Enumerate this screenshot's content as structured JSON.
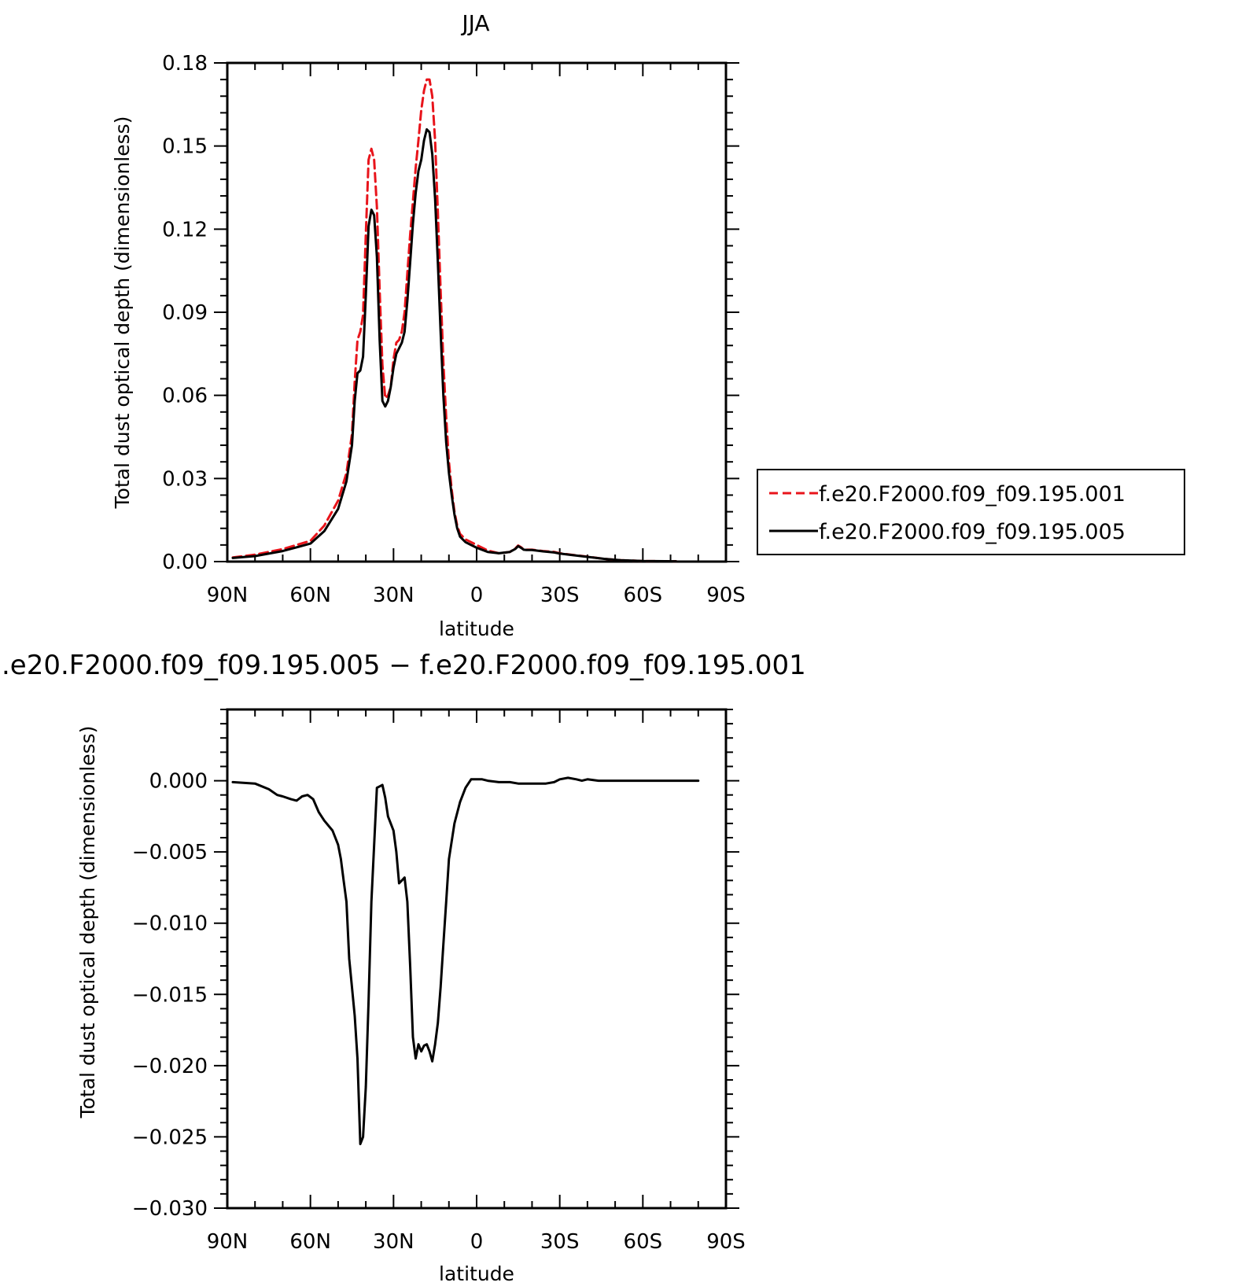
{
  "chart_data": [
    {
      "type": "line",
      "title": "JJA",
      "xlabel": "latitude",
      "ylabel": "Total dust optical depth (dimensionless)",
      "x_tick_labels": [
        "90N",
        "60N",
        "30N",
        "0",
        "30S",
        "60S",
        "90S"
      ],
      "y_tick_labels": [
        "0.00",
        "0.03",
        "0.06",
        "0.09",
        "0.12",
        "0.15",
        "0.18"
      ],
      "ylim": [
        0,
        0.18
      ],
      "xlim": [
        90,
        -90
      ],
      "legend_position": "right",
      "series": [
        {
          "name": "f.e20.F2000.f09_f09.195.001",
          "color": "#e8141b",
          "dash": "dashed",
          "x": [
            88,
            80,
            70,
            60,
            55,
            50,
            47,
            45,
            44,
            43,
            42,
            41,
            40,
            39,
            38,
            37,
            36,
            35,
            34,
            33,
            32,
            31,
            30,
            29,
            28,
            27,
            26,
            25,
            24,
            23,
            22,
            21,
            20,
            19,
            18,
            17,
            16,
            15,
            14,
            13,
            12,
            11,
            10,
            9,
            8,
            7,
            6,
            5,
            4,
            2,
            0,
            -4,
            -8,
            -12,
            -14,
            -15,
            -16,
            -17,
            -18,
            -20,
            -24,
            -28,
            -30,
            -34,
            -40,
            -46,
            -52,
            -60,
            -72
          ],
          "y": [
            0.0015,
            0.0025,
            0.0045,
            0.0075,
            0.013,
            0.022,
            0.032,
            0.046,
            0.065,
            0.08,
            0.083,
            0.089,
            0.118,
            0.145,
            0.149,
            0.145,
            0.128,
            0.098,
            0.071,
            0.059,
            0.06,
            0.063,
            0.073,
            0.079,
            0.08,
            0.083,
            0.09,
            0.104,
            0.118,
            0.13,
            0.142,
            0.152,
            0.163,
            0.17,
            0.174,
            0.174,
            0.168,
            0.152,
            0.126,
            0.098,
            0.072,
            0.052,
            0.036,
            0.026,
            0.018,
            0.013,
            0.01,
            0.009,
            0.008,
            0.007,
            0.006,
            0.004,
            0.003,
            0.0035,
            0.0048,
            0.0058,
            0.0052,
            0.0044,
            0.0043,
            0.0043,
            0.0038,
            0.0035,
            0.003,
            0.0025,
            0.0018,
            0.001,
            0.0005,
            0.0002,
            0.0001
          ]
        },
        {
          "name": "f.e20.F2000.f09_f09.195.005",
          "color": "#000000",
          "dash": "solid",
          "x": [
            88,
            80,
            70,
            60,
            55,
            50,
            47,
            45,
            44,
            43,
            42,
            41,
            40,
            39,
            38,
            37,
            36,
            35,
            34,
            33,
            32,
            31,
            30,
            29,
            28,
            27,
            26,
            25,
            24,
            23,
            22,
            21,
            20,
            19,
            18,
            17,
            16,
            15,
            14,
            13,
            12,
            11,
            10,
            9,
            8,
            7,
            6,
            5,
            4,
            2,
            0,
            -4,
            -8,
            -12,
            -14,
            -15,
            -16,
            -17,
            -18,
            -20,
            -24,
            -28,
            -30,
            -34,
            -40,
            -46,
            -52,
            -60,
            -72
          ],
          "y": [
            0.0013,
            0.002,
            0.0038,
            0.0065,
            0.011,
            0.019,
            0.029,
            0.042,
            0.058,
            0.068,
            0.069,
            0.074,
            0.096,
            0.121,
            0.127,
            0.125,
            0.11,
            0.08,
            0.058,
            0.056,
            0.058,
            0.063,
            0.07,
            0.075,
            0.077,
            0.079,
            0.083,
            0.094,
            0.108,
            0.122,
            0.133,
            0.141,
            0.145,
            0.152,
            0.156,
            0.155,
            0.147,
            0.131,
            0.108,
            0.083,
            0.06,
            0.043,
            0.032,
            0.024,
            0.017,
            0.012,
            0.009,
            0.008,
            0.007,
            0.006,
            0.005,
            0.0035,
            0.003,
            0.0035,
            0.0046,
            0.0056,
            0.005,
            0.0043,
            0.0042,
            0.0042,
            0.0037,
            0.0033,
            0.0029,
            0.0024,
            0.0017,
            0.001,
            0.0005,
            0.0002,
            0.0001
          ]
        }
      ]
    },
    {
      "type": "line",
      "title": ".e20.F2000.f09_f09.195.005 − f.e20.F2000.f09_f09.195.001",
      "xlabel": "latitude",
      "ylabel": "Total dust optical depth (dimensionless)",
      "x_tick_labels": [
        "90N",
        "60N",
        "30N",
        "0",
        "30S",
        "60S",
        "90S"
      ],
      "y_tick_labels": [
        "0.000",
        "−0.005",
        "−0.010",
        "−0.015",
        "−0.020",
        "−0.025",
        "−0.030"
      ],
      "ylim": [
        -0.03,
        0.005
      ],
      "xlim": [
        90,
        -90
      ],
      "series": [
        {
          "name": "",
          "color": "#000000",
          "dash": "solid",
          "x": [
            88,
            80,
            75,
            72,
            70,
            67,
            65,
            63,
            61,
            59,
            57,
            55,
            52,
            50,
            49,
            48,
            47,
            46,
            45,
            44,
            43,
            42,
            41,
            40,
            39,
            38,
            37,
            36,
            35,
            34,
            33,
            32,
            31,
            30,
            29,
            28,
            27,
            26,
            25,
            24,
            23,
            22,
            21,
            20,
            19,
            18,
            17,
            16,
            15,
            14,
            13,
            12,
            11,
            10,
            8,
            6,
            4,
            2,
            0,
            -2,
            -4,
            -8,
            -12,
            -15,
            -17,
            -20,
            -25,
            -28,
            -30,
            -33,
            -36,
            -38,
            -40,
            -44,
            -50,
            -60,
            -70,
            -80
          ],
          "y": [
            -0.0001,
            -0.0002,
            -0.0006,
            -0.001,
            -0.0011,
            -0.0013,
            -0.0014,
            -0.0011,
            -0.001,
            -0.0013,
            -0.0022,
            -0.0028,
            -0.0035,
            -0.0045,
            -0.0055,
            -0.007,
            -0.0085,
            -0.0125,
            -0.0145,
            -0.0165,
            -0.0195,
            -0.0255,
            -0.025,
            -0.0215,
            -0.0155,
            -0.0085,
            -0.0045,
            -0.0005,
            -0.0004,
            -0.0003,
            -0.0012,
            -0.0025,
            -0.003,
            -0.0035,
            -0.005,
            -0.0072,
            -0.007,
            -0.0068,
            -0.0085,
            -0.013,
            -0.018,
            -0.0195,
            -0.0185,
            -0.019,
            -0.0186,
            -0.0185,
            -0.019,
            -0.0197,
            -0.0185,
            -0.017,
            -0.0145,
            -0.0115,
            -0.0085,
            -0.0055,
            -0.003,
            -0.0015,
            -0.0005,
            0.0001,
            0.0001,
            0.0001,
            0.0,
            -0.0001,
            -0.0001,
            -0.0002,
            -0.0002,
            -0.0002,
            -0.0002,
            -0.0001,
            0.0001,
            0.0002,
            0.0001,
            0.0,
            0.0001,
            0.0,
            0.0,
            0.0,
            0.0,
            0.0
          ]
        }
      ]
    }
  ]
}
